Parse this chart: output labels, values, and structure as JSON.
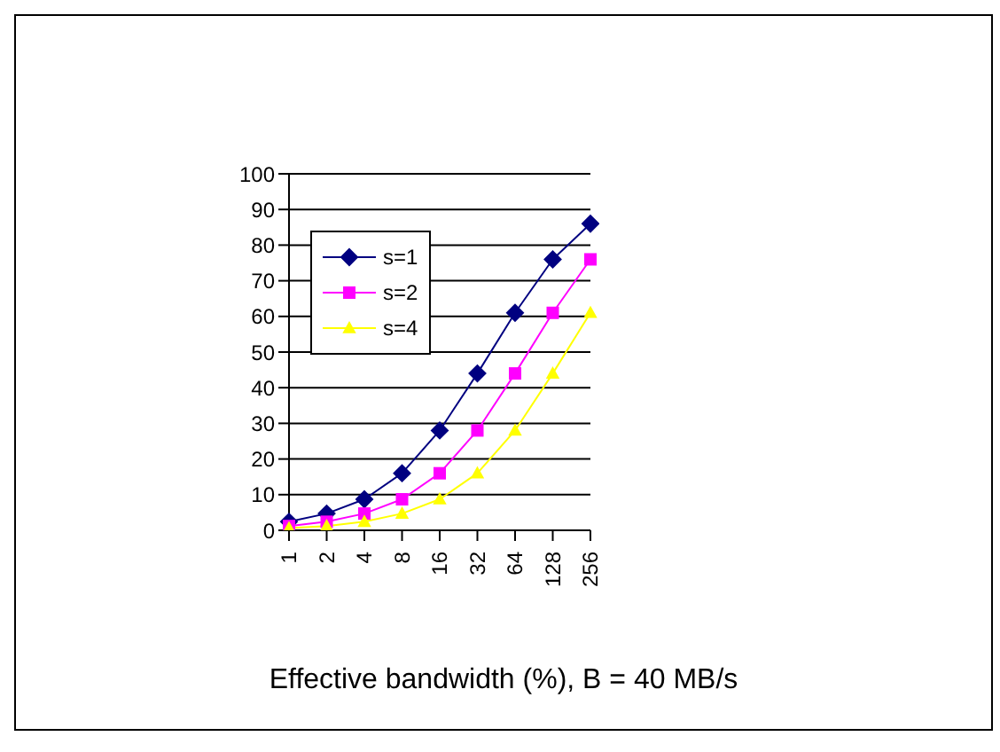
{
  "chart_data": {
    "type": "line",
    "title": "Effective bandwidth (%), B = 40 MB/s",
    "categories": [
      "1",
      "2",
      "4",
      "8",
      "16",
      "32",
      "64",
      "128",
      "256"
    ],
    "series": [
      {
        "name": "s=1",
        "color": "#000080",
        "marker": "diamond",
        "values": [
          2.4,
          4.7,
          8.7,
          16,
          28,
          44,
          61,
          76,
          86
        ]
      },
      {
        "name": "s=2",
        "color": "#ff00ff",
        "marker": "square",
        "values": [
          1.2,
          2.4,
          4.7,
          8.7,
          16,
          28,
          44,
          61,
          76
        ]
      },
      {
        "name": "s=4",
        "color": "#ffff00",
        "marker": "triangle",
        "values": [
          0.6,
          1.2,
          2.4,
          4.7,
          8.7,
          16,
          28,
          44,
          61
        ]
      }
    ],
    "ylim": [
      0,
      100
    ],
    "yticks": [
      0,
      10,
      20,
      30,
      40,
      50,
      60,
      70,
      80,
      90,
      100
    ],
    "grid": "y",
    "legend": "top left"
  }
}
